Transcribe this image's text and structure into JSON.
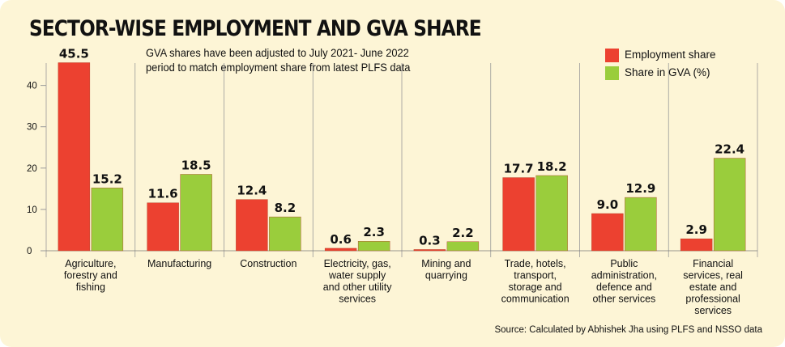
{
  "colors": {
    "background": "#fdf5d6",
    "employment": "#ec4130",
    "gva": "#9acd3c",
    "grid": "#9a9a9a"
  },
  "title": "SECTOR-WISE EMPLOYMENT AND GVA SHARE",
  "subtitle": "GVA shares have been adjusted to July 2021- June 2022 period to match employment share from latest PLFS data",
  "source": "Source: Calculated by Abhishek Jha using PLFS and NSSO data",
  "chart_data": {
    "type": "bar",
    "title": "SECTOR-WISE EMPLOYMENT AND GVA SHARE",
    "xlabel": "",
    "ylabel": "",
    "ylim": [
      0,
      45
    ],
    "yticks": [
      0,
      10,
      20,
      30,
      40
    ],
    "grid": "vertical separators between categories",
    "legend_position": "top-right",
    "categories": [
      [
        "Agriculture,",
        "forestry and",
        "fishing"
      ],
      [
        "Manufacturing"
      ],
      [
        "Construction"
      ],
      [
        "Electricity, gas,",
        "water supply",
        "and other utility",
        "services"
      ],
      [
        "Mining and",
        "quarrying"
      ],
      [
        "Trade, hotels,",
        "transport,",
        "storage and",
        "communication"
      ],
      [
        "Public",
        "administration,",
        "defence and",
        "other services"
      ],
      [
        "Financial",
        "services, real",
        "estate and",
        "professional",
        "services"
      ]
    ],
    "series": [
      {
        "name": "Employment share",
        "values": [
          45.5,
          11.6,
          12.4,
          0.6,
          0.3,
          17.7,
          9.0,
          2.9
        ],
        "labels": [
          "45.5",
          "11.6",
          "12.4",
          "0.6",
          "0.3",
          "17.7",
          "9.0",
          "2.9"
        ]
      },
      {
        "name": "Share in GVA (%)",
        "values": [
          15.2,
          18.5,
          8.2,
          2.3,
          2.2,
          18.2,
          12.9,
          22.4
        ],
        "labels": [
          "15.2",
          "18.5",
          "8.2",
          "2.3",
          "2.2",
          "18.2",
          "12.9",
          "22.4"
        ]
      }
    ]
  }
}
